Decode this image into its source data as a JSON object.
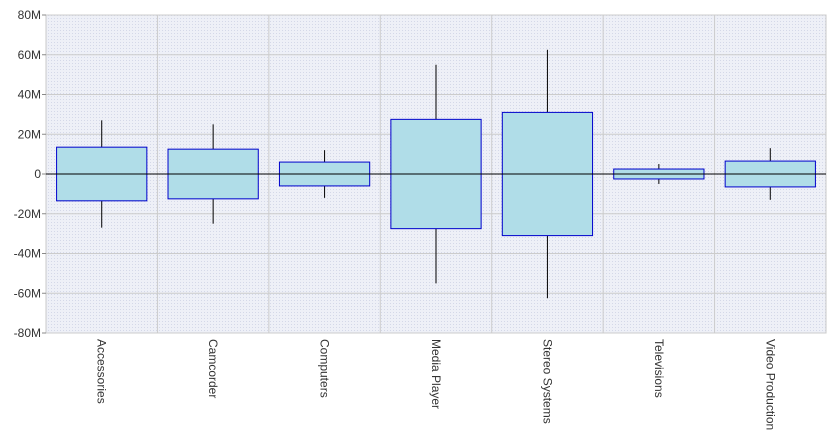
{
  "chart_data": {
    "type": "box",
    "categories": [
      "Accessories",
      "Camcorder",
      "Computers",
      "Media Player",
      "Stereo Systems",
      "Televisions",
      "Video Production"
    ],
    "boxes": [
      {
        "category": "Accessories",
        "low": -27000000,
        "q1": -13500000,
        "q3": 13500000,
        "high": 27000000
      },
      {
        "category": "Camcorder",
        "low": -25000000,
        "q1": -12500000,
        "q3": 12500000,
        "high": 25000000
      },
      {
        "category": "Computers",
        "low": -12000000,
        "q1": -6000000,
        "q3": 6000000,
        "high": 12000000
      },
      {
        "category": "Media Player",
        "low": -55000000,
        "q1": -27500000,
        "q3": 27500000,
        "high": 55000000
      },
      {
        "category": "Stereo Systems",
        "low": -62500000,
        "q1": -31000000,
        "q3": 31000000,
        "high": 62500000
      },
      {
        "category": "Televisions",
        "low": -5000000,
        "q1": -2500000,
        "q3": 2500000,
        "high": 5000000
      },
      {
        "category": "Video Production",
        "low": -13000000,
        "q1": -6500000,
        "q3": 6500000,
        "high": 13000000
      }
    ],
    "y_ticks": [
      "-80M",
      "-60M",
      "-40M",
      "-20M",
      "0",
      "20M",
      "40M",
      "60M",
      "80M"
    ],
    "ylim": [
      -80000000,
      80000000
    ],
    "grid": true,
    "colors": {
      "box_fill": "#b0dde8",
      "box_stroke": "#0000cc",
      "whisker": "#000000",
      "plot_bg": "#eef0f7",
      "grid": "#cccccc",
      "zero_line": "#000000"
    }
  }
}
